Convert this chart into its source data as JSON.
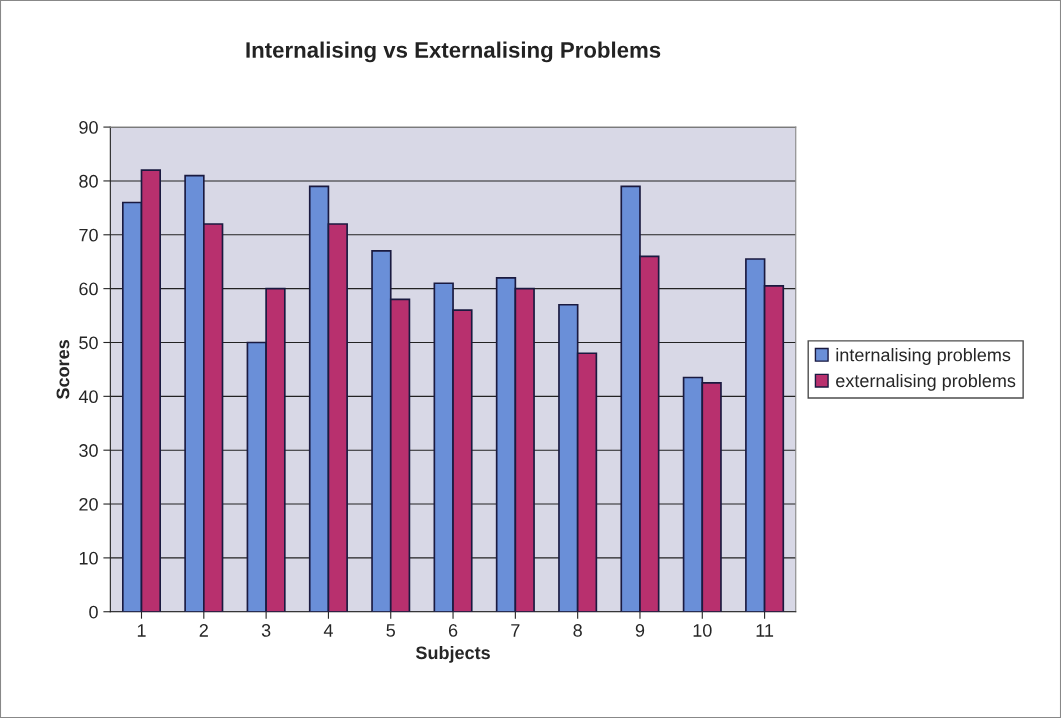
{
  "chart_data": {
    "type": "bar",
    "title": "Internalising vs Externalising Problems",
    "xlabel": "Subjects",
    "ylabel": "Scores",
    "categories": [
      "1",
      "2",
      "3",
      "4",
      "5",
      "6",
      "7",
      "8",
      "9",
      "10",
      "11"
    ],
    "series": [
      {
        "name": "internalising problems",
        "color": "#6a8fd8",
        "values": [
          76,
          81,
          50,
          79,
          67,
          61,
          62,
          57,
          79,
          43.5,
          65.5
        ]
      },
      {
        "name": "externalising problems",
        "color": "#b8306e",
        "values": [
          82,
          72,
          60,
          72,
          58,
          56,
          60,
          48,
          66,
          42.5,
          60.5
        ]
      }
    ],
    "ylim": [
      0,
      90
    ],
    "yticks": [
      0,
      10,
      20,
      30,
      40,
      50,
      60,
      70,
      80,
      90
    ],
    "grid": "y",
    "legend": "right"
  }
}
